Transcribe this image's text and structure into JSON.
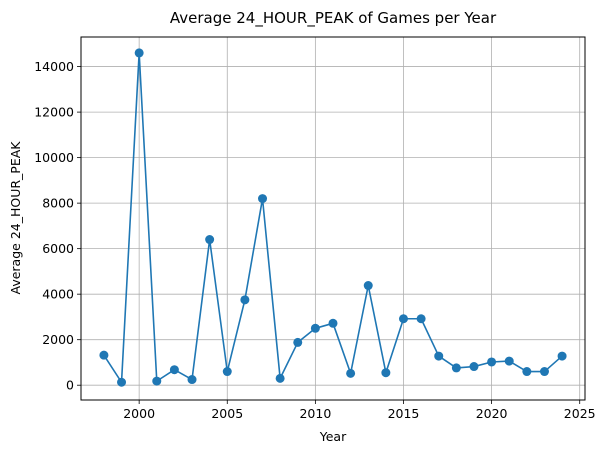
{
  "chart_data": {
    "type": "line",
    "title": "Average 24_HOUR_PEAK of Games per Year",
    "xlabel": "Year",
    "ylabel": "Average 24_HOUR_PEAK",
    "xlim": [
      1996.7,
      2025.3
    ],
    "ylim": [
      -650,
      15300
    ],
    "xticks": [
      2000,
      2005,
      2010,
      2015,
      2020,
      2025
    ],
    "yticks": [
      0,
      2000,
      4000,
      6000,
      8000,
      10000,
      12000,
      14000
    ],
    "grid": true,
    "colors": {
      "line": "#1f77b4",
      "grid": "#b0b0b0"
    },
    "marker": "circle",
    "series": [
      {
        "x": [
          1998,
          1999,
          2000,
          2001,
          2002,
          2003,
          2004,
          2005,
          2006,
          2007,
          2008,
          2009,
          2010,
          2011,
          2012,
          2013,
          2014,
          2015,
          2016,
          2017,
          2018,
          2019,
          2020,
          2021,
          2022,
          2023,
          2024
        ],
        "y": [
          1320,
          130,
          14600,
          180,
          680,
          250,
          6400,
          600,
          3750,
          8200,
          300,
          1880,
          2500,
          2720,
          520,
          4380,
          550,
          2920,
          2920,
          1280,
          760,
          820,
          1020,
          1060,
          600,
          600,
          1280
        ]
      }
    ]
  }
}
